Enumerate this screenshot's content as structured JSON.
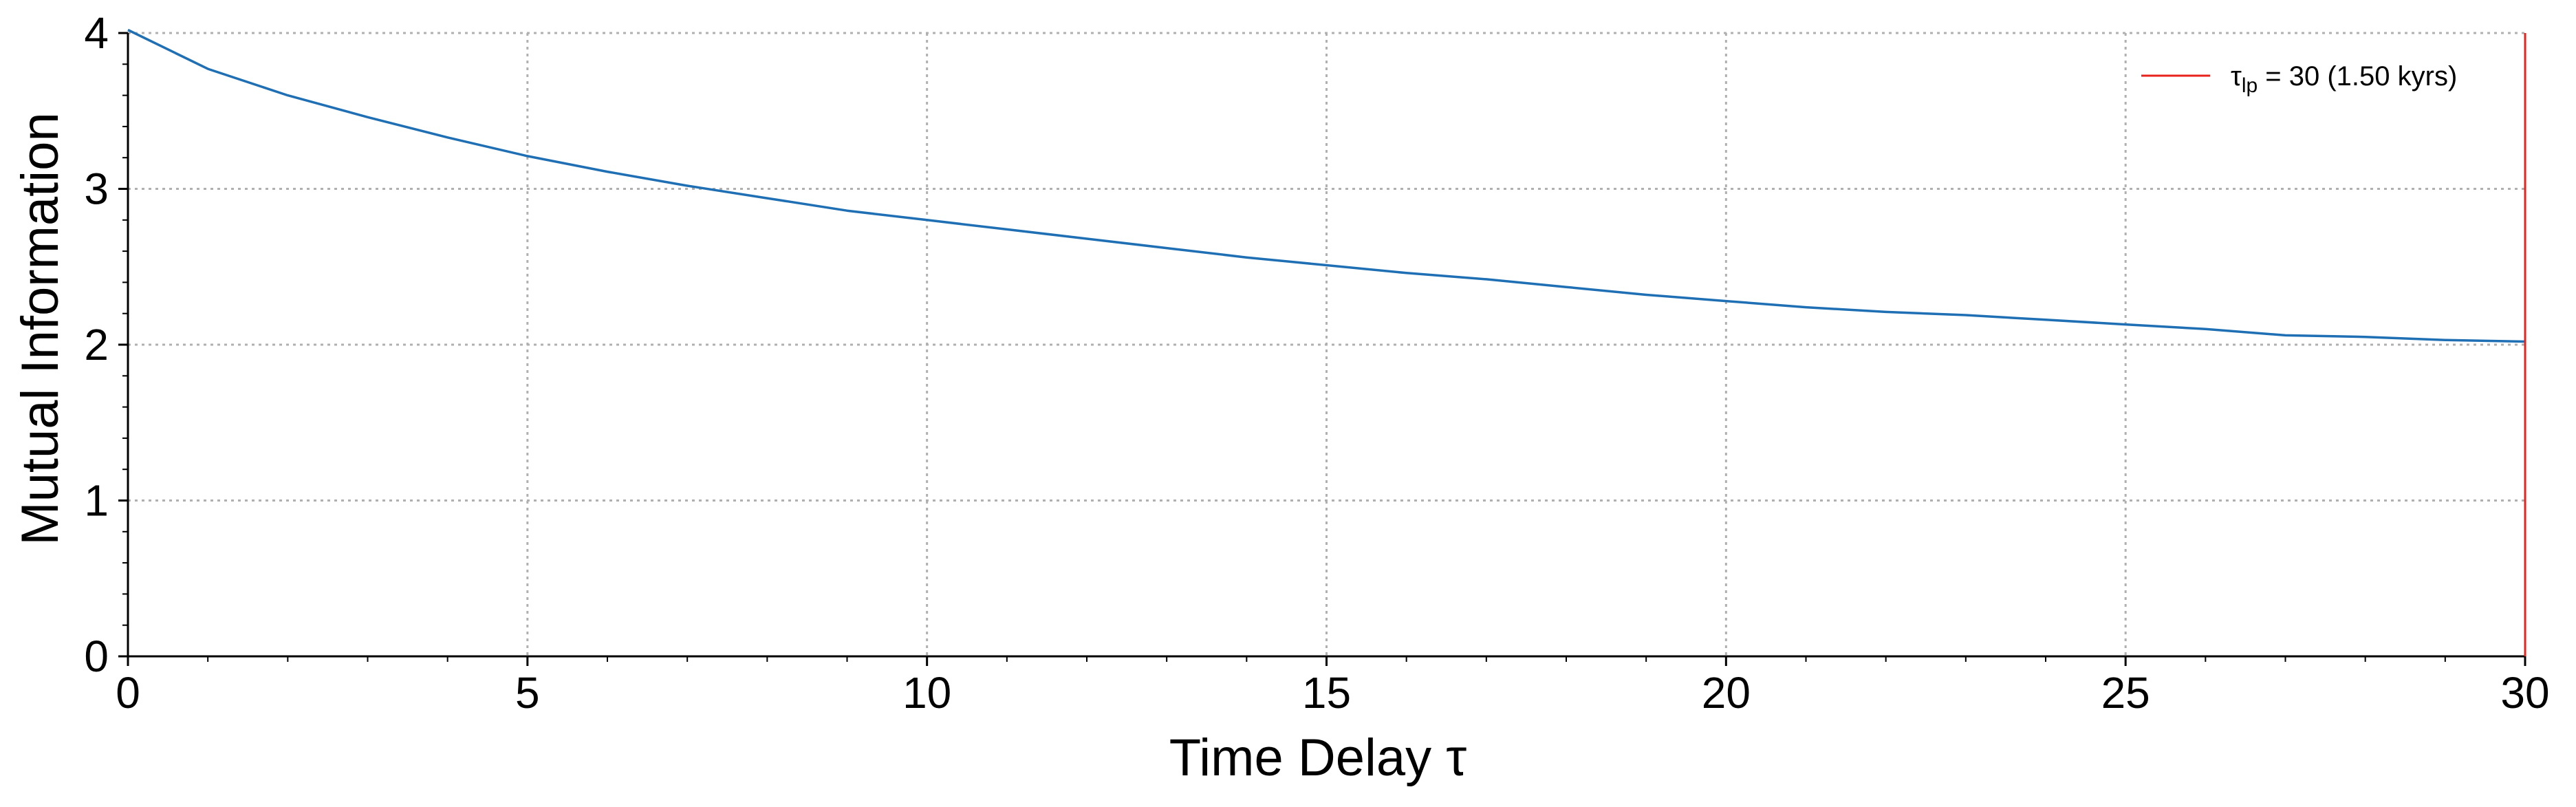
{
  "chart_data": {
    "type": "line",
    "xlabel": "Time Delay τ",
    "ylabel": "Mutual Information",
    "xlim": [
      0,
      30
    ],
    "ylim": [
      0,
      4
    ],
    "x_ticks": [
      "0",
      "5",
      "10",
      "15",
      "20",
      "25",
      "30"
    ],
    "y_ticks": [
      "0",
      "1",
      "2",
      "3",
      "4"
    ],
    "grid": true,
    "legend_position": "top-right",
    "series": [
      {
        "color": "#1f6fb4",
        "x": [
          0,
          1,
          2,
          3,
          4,
          5,
          6,
          7,
          8,
          9,
          10,
          11,
          12,
          13,
          14,
          15,
          16,
          17,
          18,
          19,
          20,
          21,
          22,
          23,
          24,
          25,
          26,
          27,
          28,
          29,
          30
        ],
        "y": [
          4.02,
          3.77,
          3.6,
          3.46,
          3.33,
          3.21,
          3.11,
          3.02,
          2.94,
          2.86,
          2.8,
          2.74,
          2.68,
          2.62,
          2.56,
          2.51,
          2.46,
          2.42,
          2.37,
          2.32,
          2.28,
          2.24,
          2.21,
          2.19,
          2.16,
          2.13,
          2.1,
          2.06,
          2.05,
          2.03,
          2.02
        ]
      }
    ],
    "annotations": [
      {
        "type": "vertical-line",
        "x": 30,
        "color": "#e8211b",
        "legend_symbol": "τ",
        "legend_subscript": "lp",
        "legend_rest": " = 30 (1.50 kyrs)"
      }
    ]
  }
}
